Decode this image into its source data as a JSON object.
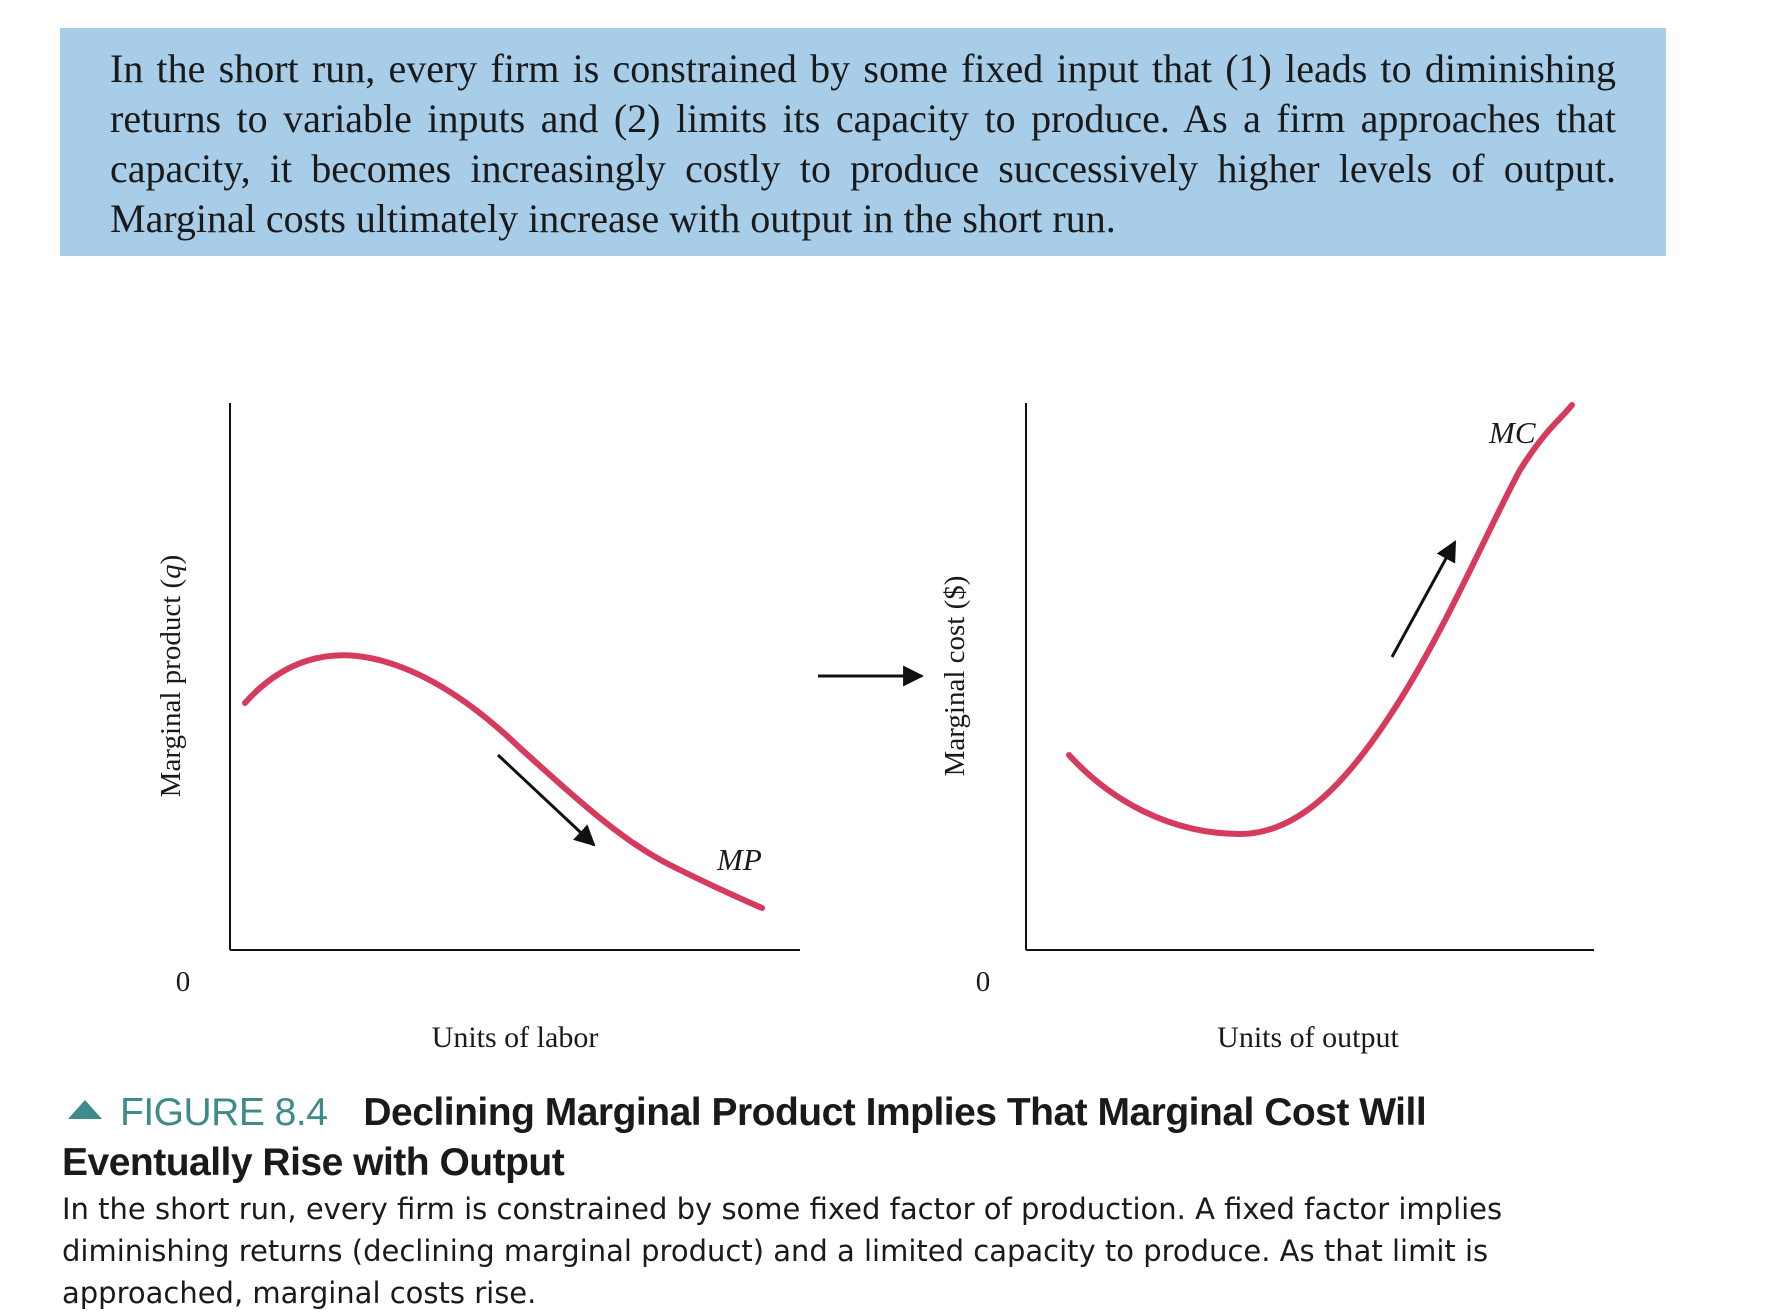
{
  "callout": {
    "text": "In the short run, every firm is constrained by some fixed input that (1) leads to diminishing returns to variable inputs and (2) limits its capacity to produce. As a firm approaches that capacity, it becomes increasingly costly to produce successively higher levels of output. Marginal costs ultimately increase with output in the short run."
  },
  "colors": {
    "curve": "#d63a5c",
    "callout_bg": "#a8cde8",
    "figure_accent": "#3d8b8a"
  },
  "charts": {
    "left": {
      "ylabel": "Marginal product (",
      "ylabel_var": "q",
      "ylabel_end": ")",
      "xlabel": "Units of labor",
      "origin": "0",
      "curve_label": "MP"
    },
    "between_arrow": "right-arrow",
    "right": {
      "ylabel": "Marginal cost ($)",
      "xlabel": "Units of output",
      "origin": "0",
      "curve_label": "MC"
    }
  },
  "caption": {
    "icon": "triangle-up-icon",
    "figure_number": "FIGURE 8.4",
    "title": "Declining Marginal Product Implies That Marginal Cost Will Eventually Rise with Output",
    "body": "In the short run, every firm is constrained by some fixed factor of production. A fixed factor implies diminishing returns (declining marginal product) and a limited capacity to produce. As that limit is approached, marginal costs rise."
  }
}
